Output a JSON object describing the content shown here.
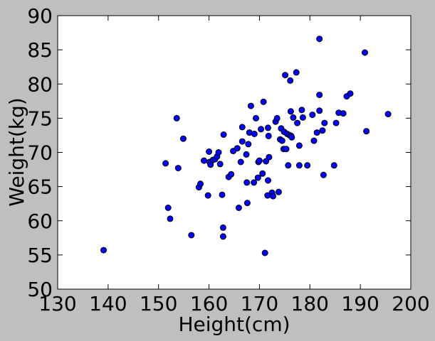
{
  "colors": {
    "figure_background": "#bfbfbf",
    "axes_background": "#ffffff",
    "marker_fill": "#0000ff",
    "marker_edge": "#000000"
  },
  "chart_data": {
    "type": "scatter",
    "xlabel": "Height(cm)",
    "ylabel": "Weight(kg)",
    "xlim": [
      130,
      200
    ],
    "ylim": [
      50,
      90
    ],
    "xticks": [
      130,
      140,
      150,
      160,
      170,
      180,
      190,
      200
    ],
    "yticks": [
      50,
      55,
      60,
      65,
      70,
      75,
      80,
      85,
      90
    ],
    "grid": false,
    "legend": false,
    "marker": "circle",
    "series": [
      {
        "points": [
          [
            139.1,
            55.7
          ],
          [
            151.4,
            68.4
          ],
          [
            151.9,
            61.9
          ],
          [
            152.3,
            60.3
          ],
          [
            153.6,
            75.0
          ],
          [
            153.9,
            67.7
          ],
          [
            154.9,
            72.0
          ],
          [
            156.5,
            57.9
          ],
          [
            158.0,
            64.9
          ],
          [
            158.3,
            65.4
          ],
          [
            159.0,
            68.8
          ],
          [
            159.8,
            63.7
          ],
          [
            160.0,
            70.1
          ],
          [
            160.1,
            68.6
          ],
          [
            160.3,
            68.2
          ],
          [
            160.8,
            68.9
          ],
          [
            161.2,
            69.0
          ],
          [
            161.6,
            69.4
          ],
          [
            161.9,
            70.0
          ],
          [
            162.2,
            68.3
          ],
          [
            162.6,
            63.8
          ],
          [
            162.8,
            59.0
          ],
          [
            162.8,
            57.7
          ],
          [
            162.9,
            72.6
          ],
          [
            163.9,
            66.4
          ],
          [
            164.4,
            66.8
          ],
          [
            164.8,
            70.2
          ],
          [
            165.6,
            70.6
          ],
          [
            165.9,
            61.9
          ],
          [
            166.3,
            68.6
          ],
          [
            166.6,
            73.7
          ],
          [
            166.6,
            71.6
          ],
          [
            167.4,
            69.7
          ],
          [
            167.5,
            65.6
          ],
          [
            167.6,
            62.6
          ],
          [
            167.8,
            71.2
          ],
          [
            168.0,
            72.9
          ],
          [
            168.3,
            76.8
          ],
          [
            168.9,
            65.6
          ],
          [
            169.0,
            72.7
          ],
          [
            169.3,
            75.0
          ],
          [
            169.7,
            66.3
          ],
          [
            169.8,
            68.6
          ],
          [
            170.0,
            68.8
          ],
          [
            170.3,
            73.4
          ],
          [
            170.6,
            66.9
          ],
          [
            170.8,
            77.4
          ],
          [
            171.1,
            55.3
          ],
          [
            171.3,
            68.7
          ],
          [
            171.6,
            63.7
          ],
          [
            171.7,
            65.9
          ],
          [
            171.7,
            73.6
          ],
          [
            171.8,
            72.4
          ],
          [
            171.9,
            69.3
          ],
          [
            172.5,
            64.1
          ],
          [
            172.7,
            63.6
          ],
          [
            173.2,
            74.5
          ],
          [
            173.5,
            75.0
          ],
          [
            173.8,
            64.2
          ],
          [
            174.1,
            71.9
          ],
          [
            174.3,
            73.5
          ],
          [
            174.5,
            71.7
          ],
          [
            174.8,
            70.5
          ],
          [
            174.9,
            73.0
          ],
          [
            175.1,
            81.3
          ],
          [
            175.3,
            70.5
          ],
          [
            175.5,
            72.7
          ],
          [
            175.7,
            68.1
          ],
          [
            176.0,
            72.5
          ],
          [
            176.1,
            80.5
          ],
          [
            176.2,
            76.0
          ],
          [
            176.3,
            72.4
          ],
          [
            176.4,
            72.2
          ],
          [
            176.7,
            75.1
          ],
          [
            177.3,
            81.7
          ],
          [
            177.5,
            74.3
          ],
          [
            177.9,
            68.1
          ],
          [
            177.9,
            71.0
          ],
          [
            178.4,
            76.2
          ],
          [
            178.6,
            75.1
          ],
          [
            179.5,
            68.1
          ],
          [
            180.5,
            75.5
          ],
          [
            180.8,
            71.7
          ],
          [
            181.4,
            72.9
          ],
          [
            181.9,
            86.6
          ],
          [
            181.9,
            78.4
          ],
          [
            181.9,
            76.1
          ],
          [
            182.5,
            73.2
          ],
          [
            182.7,
            66.7
          ],
          [
            182.9,
            74.3
          ],
          [
            184.8,
            68.1
          ],
          [
            185.2,
            74.3
          ],
          [
            185.7,
            75.8
          ],
          [
            186.6,
            75.7
          ],
          [
            187.3,
            78.2
          ],
          [
            188.0,
            78.6
          ],
          [
            190.9,
            84.6
          ],
          [
            191.2,
            73.1
          ],
          [
            195.5,
            75.6
          ]
        ]
      }
    ]
  }
}
